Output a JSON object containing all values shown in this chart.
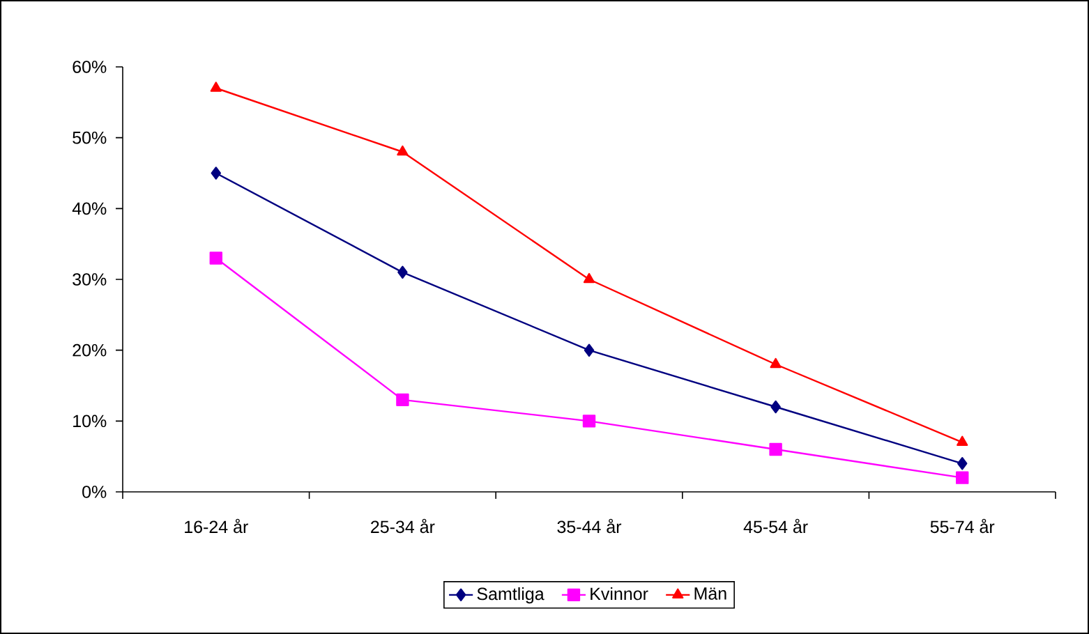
{
  "chart_data": {
    "type": "line",
    "categories": [
      "16-24 år",
      "25-34 år",
      "35-44 år",
      "45-54 år",
      "55-74 år"
    ],
    "series": [
      {
        "name": "Samtliga",
        "color": "#000080",
        "marker": "diamond",
        "values": [
          45,
          31,
          20,
          12,
          4
        ]
      },
      {
        "name": "Kvinnor",
        "color": "#ff00ff",
        "marker": "square",
        "values": [
          33,
          13,
          10,
          6,
          2
        ]
      },
      {
        "name": "Män",
        "color": "#ff0000",
        "marker": "triangle",
        "values": [
          57,
          48,
          30,
          18,
          7
        ]
      }
    ],
    "ylim": [
      0,
      60
    ],
    "yticks": [
      {
        "value": 0,
        "label": "0%"
      },
      {
        "value": 10,
        "label": "10%"
      },
      {
        "value": 20,
        "label": "20%"
      },
      {
        "value": 30,
        "label": "30%"
      },
      {
        "value": 40,
        "label": "40%"
      },
      {
        "value": 50,
        "label": "50%"
      },
      {
        "value": 60,
        "label": "60%"
      }
    ],
    "grid": false,
    "legend": "bottom",
    "line_style": "solid"
  }
}
